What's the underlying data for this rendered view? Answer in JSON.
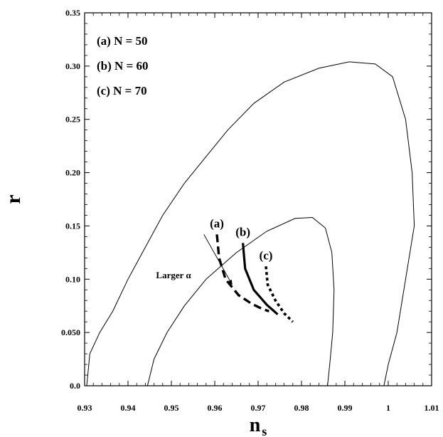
{
  "chart_data": {
    "type": "line",
    "title": "",
    "xlabel": "n",
    "xlabel_subscript": "s",
    "ylabel": "r",
    "xlim": [
      0.93,
      1.01
    ],
    "ylim": [
      0.0,
      0.35
    ],
    "x_ticks": [
      0.93,
      0.94,
      0.95,
      0.96,
      0.97,
      0.98,
      0.99,
      1.0,
      1.01
    ],
    "x_tick_labels": [
      "0.93",
      "0.94",
      "0.95",
      "0.96",
      "0.97",
      "0.98",
      "0.99",
      "1",
      "1.01"
    ],
    "y_ticks": [
      0.0,
      0.05,
      0.1,
      0.15,
      0.2,
      0.25,
      0.3,
      0.35
    ],
    "y_tick_labels": [
      "0.0",
      "0.050",
      "0.10",
      "0.15",
      "0.20",
      "0.25",
      "0.30",
      "0.35"
    ],
    "grid": false,
    "legend_placement": "top-left",
    "legend_entries": [
      "(a) N = 50",
      "(b) N = 60",
      "(c) N = 70"
    ],
    "contours": [
      {
        "points": [
          [
            0.9305,
            0.0
          ],
          [
            0.9312,
            0.03
          ],
          [
            0.9335,
            0.05
          ],
          [
            0.9365,
            0.07
          ],
          [
            0.94,
            0.1
          ],
          [
            0.944,
            0.13
          ],
          [
            0.948,
            0.16
          ],
          [
            0.953,
            0.19
          ],
          [
            0.958,
            0.215
          ],
          [
            0.963,
            0.24
          ],
          [
            0.969,
            0.265
          ],
          [
            0.976,
            0.285
          ],
          [
            0.984,
            0.298
          ],
          [
            0.991,
            0.304
          ],
          [
            0.997,
            0.302
          ],
          [
            1.001,
            0.29
          ],
          [
            1.004,
            0.25
          ],
          [
            1.0055,
            0.2
          ],
          [
            1.006,
            0.15
          ],
          [
            1.004,
            0.1
          ],
          [
            1.002,
            0.05
          ],
          [
            1.0,
            0.02
          ],
          [
            0.999,
            0.0
          ]
        ]
      },
      {
        "points": [
          [
            0.9445,
            0.0
          ],
          [
            0.946,
            0.025
          ],
          [
            0.949,
            0.05
          ],
          [
            0.953,
            0.075
          ],
          [
            0.958,
            0.1
          ],
          [
            0.965,
            0.125
          ],
          [
            0.972,
            0.145
          ],
          [
            0.9785,
            0.157
          ],
          [
            0.9825,
            0.158
          ],
          [
            0.9855,
            0.148
          ],
          [
            0.987,
            0.125
          ],
          [
            0.9875,
            0.09
          ],
          [
            0.9872,
            0.05
          ],
          [
            0.9865,
            0.02
          ],
          [
            0.986,
            0.0
          ]
        ]
      }
    ],
    "series": [
      {
        "label": "(a)",
        "style": "dashed",
        "points": [
          [
            0.9605,
            0.142
          ],
          [
            0.961,
            0.12
          ],
          [
            0.9625,
            0.1
          ],
          [
            0.9655,
            0.085
          ],
          [
            0.9685,
            0.077
          ],
          [
            0.971,
            0.072
          ],
          [
            0.9725,
            0.07
          ]
        ]
      },
      {
        "label": "(b)",
        "style": "solid",
        "points": [
          [
            0.9665,
            0.134
          ],
          [
            0.967,
            0.11
          ],
          [
            0.969,
            0.09
          ],
          [
            0.972,
            0.076
          ],
          [
            0.9745,
            0.067
          ]
        ]
      },
      {
        "label": "(c)",
        "style": "dotted",
        "points": [
          [
            0.9718,
            0.112
          ],
          [
            0.9722,
            0.095
          ],
          [
            0.974,
            0.08
          ],
          [
            0.976,
            0.068
          ],
          [
            0.978,
            0.06
          ]
        ]
      }
    ],
    "annotations": [
      {
        "text": "Larger α",
        "arrow_from": [
          0.9575,
          0.142
        ],
        "arrow_to": [
          0.964,
          0.095
        ],
        "text_at": [
          0.9505,
          0.101
        ]
      }
    ]
  }
}
